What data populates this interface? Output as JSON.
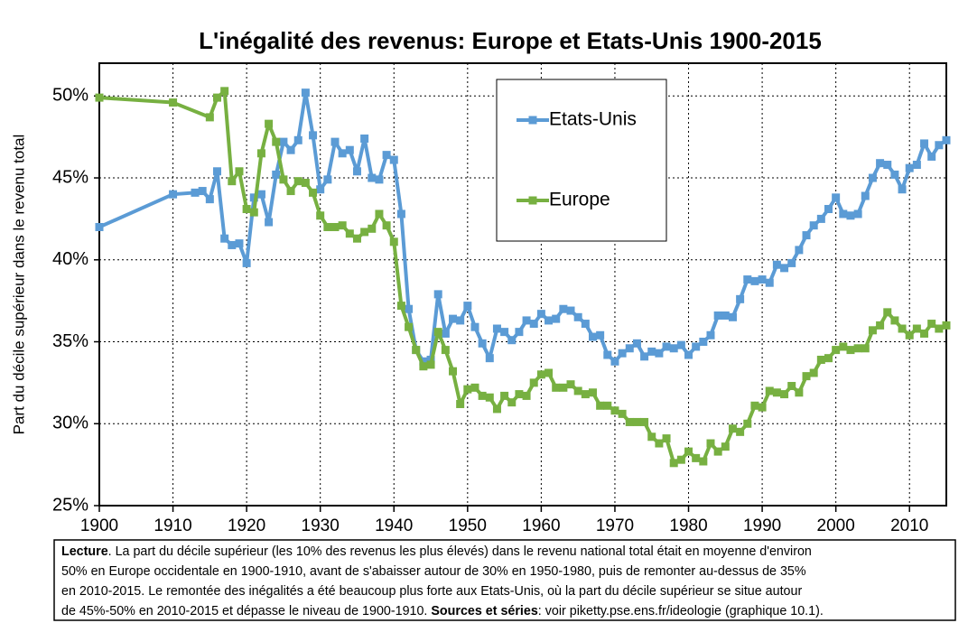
{
  "chart_data": {
    "type": "line",
    "title": "L'inégalité des revenus: Europe et Etats-Unis 1900-2015",
    "ylabel": "Part du décile supérieur dans le revenu total",
    "xlim": [
      1900,
      2015
    ],
    "ylim": [
      25,
      52
    ],
    "xticks": [
      1900,
      1910,
      1920,
      1930,
      1940,
      1950,
      1960,
      1970,
      1980,
      1990,
      2000,
      2010
    ],
    "yticks": [
      {
        "value": 25,
        "label": "25%"
      },
      {
        "value": 30,
        "label": "30%"
      },
      {
        "value": 35,
        "label": "35%"
      },
      {
        "value": 40,
        "label": "40%"
      },
      {
        "value": 45,
        "label": "45%"
      },
      {
        "value": 50,
        "label": "50%"
      }
    ],
    "grid": true,
    "legend": "upper center",
    "series": [
      {
        "name": "Etats-Unis",
        "color": "#5b9bd5",
        "x": [
          1900,
          1910,
          1913,
          1914,
          1915,
          1916,
          1917,
          1918,
          1919,
          1920,
          1921,
          1922,
          1923,
          1924,
          1925,
          1926,
          1927,
          1928,
          1929,
          1930,
          1931,
          1932,
          1933,
          1934,
          1935,
          1936,
          1937,
          1938,
          1939,
          1940,
          1941,
          1942,
          1943,
          1944,
          1945,
          1946,
          1947,
          1948,
          1949,
          1950,
          1951,
          1952,
          1953,
          1954,
          1955,
          1956,
          1957,
          1958,
          1959,
          1960,
          1961,
          1962,
          1963,
          1964,
          1965,
          1966,
          1967,
          1968,
          1969,
          1970,
          1971,
          1972,
          1973,
          1974,
          1975,
          1976,
          1977,
          1978,
          1979,
          1980,
          1981,
          1982,
          1983,
          1984,
          1985,
          1986,
          1987,
          1988,
          1989,
          1990,
          1991,
          1992,
          1993,
          1994,
          1995,
          1996,
          1997,
          1998,
          1999,
          2000,
          2001,
          2002,
          2003,
          2004,
          2005,
          2006,
          2007,
          2008,
          2009,
          2010,
          2011,
          2012,
          2013,
          2014,
          2015
        ],
        "values": [
          42.0,
          44.0,
          44.1,
          44.2,
          43.7,
          45.4,
          41.3,
          40.9,
          41.0,
          39.8,
          43.8,
          44.0,
          42.3,
          45.2,
          47.2,
          46.7,
          47.3,
          50.2,
          47.6,
          44.3,
          44.9,
          47.2,
          46.5,
          46.7,
          45.4,
          47.4,
          45.0,
          44.9,
          46.4,
          46.1,
          42.8,
          37.0,
          34.5,
          33.8,
          33.9,
          37.9,
          35.5,
          36.4,
          36.3,
          37.2,
          35.9,
          34.9,
          34.0,
          35.8,
          35.6,
          35.1,
          35.6,
          36.3,
          36.1,
          36.7,
          36.3,
          36.4,
          37.0,
          36.9,
          36.5,
          36.1,
          35.3,
          35.4,
          34.2,
          33.8,
          34.3,
          34.6,
          34.9,
          34.1,
          34.4,
          34.3,
          34.7,
          34.6,
          34.8,
          34.2,
          34.7,
          35.0,
          35.4,
          36.6,
          36.6,
          36.5,
          37.6,
          38.8,
          38.7,
          38.8,
          38.6,
          39.7,
          39.5,
          39.8,
          40.6,
          41.5,
          42.1,
          42.5,
          43.1,
          43.8,
          42.8,
          42.7,
          42.8,
          43.9,
          45.0,
          45.9,
          45.8,
          45.2,
          44.3,
          45.6,
          45.8,
          47.1,
          46.3,
          47.0,
          47.3
        ]
      },
      {
        "name": "Europe",
        "color": "#77b041",
        "x": [
          1900,
          1910,
          1915,
          1916,
          1917,
          1918,
          1919,
          1920,
          1921,
          1922,
          1923,
          1924,
          1925,
          1926,
          1927,
          1928,
          1929,
          1930,
          1931,
          1932,
          1933,
          1934,
          1935,
          1936,
          1937,
          1938,
          1939,
          1940,
          1941,
          1942,
          1943,
          1944,
          1945,
          1946,
          1947,
          1948,
          1949,
          1950,
          1951,
          1952,
          1953,
          1954,
          1955,
          1956,
          1957,
          1958,
          1959,
          1960,
          1961,
          1962,
          1963,
          1964,
          1965,
          1966,
          1967,
          1968,
          1969,
          1970,
          1971,
          1972,
          1973,
          1974,
          1975,
          1976,
          1977,
          1978,
          1979,
          1980,
          1981,
          1982,
          1983,
          1984,
          1985,
          1986,
          1987,
          1988,
          1989,
          1990,
          1991,
          1992,
          1993,
          1994,
          1995,
          1996,
          1997,
          1998,
          1999,
          2000,
          2001,
          2002,
          2003,
          2004,
          2005,
          2006,
          2007,
          2008,
          2009,
          2010,
          2011,
          2012,
          2013,
          2014,
          2015
        ],
        "values": [
          49.9,
          49.6,
          48.7,
          49.9,
          50.3,
          44.8,
          45.4,
          43.1,
          42.9,
          46.5,
          48.3,
          47.2,
          44.9,
          44.2,
          44.8,
          44.7,
          44.1,
          42.7,
          42.0,
          42.0,
          42.1,
          41.6,
          41.3,
          41.7,
          41.9,
          42.8,
          42.1,
          41.1,
          37.2,
          35.9,
          34.5,
          33.5,
          33.6,
          35.6,
          34.5,
          33.2,
          31.2,
          32.1,
          32.2,
          31.7,
          31.6,
          30.9,
          31.7,
          31.3,
          31.8,
          31.7,
          32.5,
          33.0,
          33.1,
          32.2,
          32.2,
          32.4,
          32.0,
          31.8,
          31.9,
          31.1,
          31.1,
          30.8,
          30.6,
          30.1,
          30.1,
          30.1,
          29.2,
          28.8,
          29.1,
          27.6,
          27.8,
          28.3,
          27.9,
          27.7,
          28.8,
          28.3,
          28.6,
          29.7,
          29.5,
          30.0,
          31.1,
          31.0,
          32.0,
          31.9,
          31.8,
          32.3,
          31.9,
          32.9,
          33.1,
          33.9,
          34.0,
          34.5,
          34.7,
          34.5,
          34.6,
          34.6,
          35.7,
          36.0,
          36.8,
          36.3,
          35.8,
          35.4,
          35.8,
          35.5,
          36.1,
          35.8,
          36.0
        ]
      }
    ],
    "note": {
      "label": "Lecture",
      "lines": [
        ". La part du décile supérieur (les 10% des revenus les plus élevés) dans le revenu national total était en moyenne d'environ",
        "50% en Europe occidentale en 1900-1910, avant de s'abaisser autour de 30% en 1950-1980, puis de remonter au-dessus de 35%",
        "en 2010-2015. Le remontée des inégalités a été beaucoup plus forte aux Etats-Unis, où la part du décile supérieur se situe autour",
        "de 45%-50% en 2010-2015 et dépasse le niveau de 1900-1910. "
      ],
      "sources_label": "Sources et séries",
      "sources": ": voir piketty.pse.ens.fr/ideologie (graphique 10.1)."
    }
  }
}
